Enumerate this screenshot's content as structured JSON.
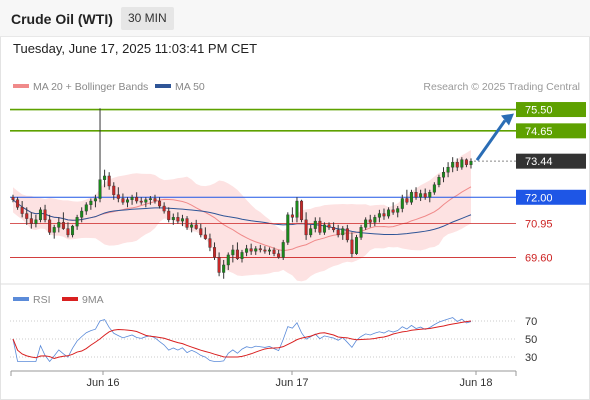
{
  "header": {
    "instrument": "Crude Oil (WTI)",
    "interval": "30 MIN",
    "datetime": "Tuesday, June 17, 2025 11:03:41 PM CET"
  },
  "legend": {
    "ma20": {
      "label": "MA 20 + Bollinger Bands",
      "color": "#f08a8a"
    },
    "ma50": {
      "label": "MA 50",
      "color": "#2f5597"
    }
  },
  "credit": "Research © 2025 Trading Central",
  "rsi_legend": {
    "rsi": {
      "label": "RSI",
      "color": "#5b8bd9"
    },
    "ma9": {
      "label": "9MA",
      "color": "#d92020"
    }
  },
  "colors": {
    "resistance": "#5ea100",
    "pivot": "#1e56e6",
    "support": "#cc2222",
    "last_price": "#333333",
    "bollinger_band": "#fde2e2",
    "candle_up": "#1a8a1a",
    "candle_down": "#c62828",
    "arrow": "#2a6db5"
  },
  "chart_data": {
    "type": "candlestick",
    "x_ticks": [
      "Jun 16",
      "Jun 17",
      "Jun 18"
    ],
    "y_range": [
      68.7,
      76.0
    ],
    "levels": [
      {
        "value": 75.5,
        "label": "75.50",
        "kind": "resistance"
      },
      {
        "value": 74.65,
        "label": "74.65",
        "kind": "resistance"
      },
      {
        "value": 73.44,
        "label": "73.44",
        "kind": "last"
      },
      {
        "value": 72.0,
        "label": "72.00",
        "kind": "pivot"
      },
      {
        "value": 70.95,
        "label": "70.95",
        "kind": "support"
      },
      {
        "value": 69.6,
        "label": "69.60",
        "kind": "support"
      }
    ],
    "candles": [
      [
        72.0,
        72.1,
        71.8,
        71.9
      ],
      [
        71.9,
        72.0,
        71.5,
        71.6
      ],
      [
        71.6,
        71.85,
        71.2,
        71.35
      ],
      [
        71.35,
        71.6,
        70.9,
        71.15
      ],
      [
        71.15,
        71.4,
        70.75,
        70.95
      ],
      [
        70.95,
        71.3,
        70.8,
        71.1
      ],
      [
        71.1,
        71.6,
        71.0,
        71.5
      ],
      [
        71.5,
        71.7,
        71.0,
        71.1
      ],
      [
        71.1,
        71.3,
        70.5,
        70.6
      ],
      [
        70.6,
        70.9,
        70.35,
        70.8
      ],
      [
        70.8,
        71.2,
        70.6,
        71.0
      ],
      [
        71.0,
        71.4,
        70.7,
        70.75
      ],
      [
        70.75,
        71.0,
        70.4,
        70.5
      ],
      [
        70.5,
        70.9,
        70.4,
        70.85
      ],
      [
        70.85,
        71.3,
        70.7,
        71.2
      ],
      [
        71.2,
        71.6,
        71.0,
        71.45
      ],
      [
        71.45,
        71.8,
        71.3,
        71.7
      ],
      [
        71.7,
        71.95,
        71.5,
        71.85
      ],
      [
        71.85,
        72.1,
        71.6,
        71.95
      ],
      [
        71.95,
        75.55,
        71.8,
        72.7
      ],
      [
        72.7,
        73.1,
        72.4,
        72.85
      ],
      [
        72.85,
        73.0,
        72.3,
        72.45
      ],
      [
        72.45,
        72.6,
        71.9,
        72.1
      ],
      [
        72.1,
        72.4,
        71.8,
        71.95
      ],
      [
        71.95,
        72.15,
        71.7,
        71.8
      ],
      [
        71.8,
        72.0,
        71.6,
        71.9
      ],
      [
        71.9,
        72.1,
        71.7,
        72.0
      ],
      [
        72.0,
        72.2,
        71.75,
        71.85
      ],
      [
        71.85,
        72.0,
        71.7,
        71.8
      ],
      [
        71.8,
        72.0,
        71.6,
        71.9
      ],
      [
        71.9,
        72.05,
        71.7,
        71.95
      ],
      [
        71.95,
        72.1,
        71.75,
        71.85
      ],
      [
        71.85,
        72.0,
        71.55,
        71.65
      ],
      [
        71.65,
        71.8,
        71.35,
        71.45
      ],
      [
        71.45,
        71.6,
        71.0,
        71.1
      ],
      [
        71.1,
        71.35,
        70.9,
        71.2
      ],
      [
        71.2,
        71.4,
        70.95,
        71.05
      ],
      [
        71.05,
        71.3,
        70.85,
        71.15
      ],
      [
        71.15,
        71.25,
        70.7,
        70.8
      ],
      [
        70.8,
        71.0,
        70.6,
        70.9
      ],
      [
        70.9,
        71.1,
        70.7,
        70.75
      ],
      [
        70.75,
        70.95,
        70.4,
        70.5
      ],
      [
        70.5,
        70.8,
        70.3,
        70.35
      ],
      [
        70.35,
        70.55,
        69.85,
        70.0
      ],
      [
        70.0,
        70.2,
        69.5,
        69.6
      ],
      [
        69.6,
        69.8,
        68.85,
        69.0
      ],
      [
        69.0,
        69.5,
        68.75,
        69.3
      ],
      [
        69.3,
        69.8,
        69.1,
        69.7
      ],
      [
        69.7,
        70.1,
        69.4,
        69.9
      ],
      [
        69.9,
        70.2,
        69.5,
        69.55
      ],
      [
        69.55,
        69.9,
        69.4,
        69.8
      ],
      [
        69.8,
        70.1,
        69.65,
        69.95
      ],
      [
        69.95,
        70.15,
        69.7,
        69.85
      ],
      [
        69.85,
        70.05,
        69.7,
        69.95
      ],
      [
        69.95,
        70.1,
        69.8,
        69.9
      ],
      [
        69.9,
        70.05,
        69.75,
        69.85
      ],
      [
        69.85,
        70.0,
        69.7,
        69.9
      ],
      [
        69.9,
        70.0,
        69.65,
        69.75
      ],
      [
        69.75,
        69.9,
        69.55,
        69.6
      ],
      [
        69.6,
        70.3,
        69.5,
        70.2
      ],
      [
        70.2,
        71.4,
        70.1,
        71.3
      ],
      [
        71.3,
        71.6,
        71.0,
        71.2
      ],
      [
        71.2,
        72.0,
        71.0,
        71.85
      ],
      [
        71.85,
        71.9,
        71.0,
        71.1
      ],
      [
        71.1,
        71.4,
        70.3,
        70.5
      ],
      [
        70.5,
        70.9,
        70.4,
        70.75
      ],
      [
        70.75,
        71.2,
        70.6,
        71.05
      ],
      [
        71.05,
        71.2,
        70.5,
        70.6
      ],
      [
        70.6,
        71.0,
        70.5,
        70.9
      ],
      [
        70.9,
        71.0,
        70.7,
        70.8
      ],
      [
        70.8,
        71.0,
        70.6,
        70.7
      ],
      [
        70.7,
        70.9,
        70.4,
        70.5
      ],
      [
        70.5,
        70.85,
        70.3,
        70.75
      ],
      [
        70.75,
        70.9,
        70.2,
        70.3
      ],
      [
        70.3,
        70.6,
        69.6,
        69.75
      ],
      [
        69.75,
        70.5,
        69.7,
        70.4
      ],
      [
        70.4,
        70.9,
        70.3,
        70.8
      ],
      [
        70.8,
        71.2,
        70.7,
        71.1
      ],
      [
        71.1,
        71.3,
        70.8,
        71.0
      ],
      [
        71.0,
        71.3,
        70.85,
        71.2
      ],
      [
        71.2,
        71.5,
        71.0,
        71.35
      ],
      [
        71.35,
        71.55,
        71.1,
        71.25
      ],
      [
        71.25,
        71.6,
        71.15,
        71.5
      ],
      [
        71.5,
        71.8,
        71.3,
        71.4
      ],
      [
        71.4,
        71.65,
        71.2,
        71.55
      ],
      [
        71.55,
        72.1,
        71.4,
        71.95
      ],
      [
        71.95,
        72.3,
        71.7,
        71.8
      ],
      [
        71.8,
        72.3,
        71.7,
        72.2
      ],
      [
        72.2,
        72.4,
        71.9,
        72.0
      ],
      [
        72.0,
        72.3,
        71.85,
        72.15
      ],
      [
        72.15,
        72.35,
        71.9,
        72.0
      ],
      [
        72.0,
        72.3,
        71.8,
        72.2
      ],
      [
        72.2,
        72.6,
        72.1,
        72.5
      ],
      [
        72.5,
        72.9,
        72.4,
        72.8
      ],
      [
        72.8,
        73.2,
        72.6,
        73.0
      ],
      [
        73.0,
        73.4,
        72.8,
        73.2
      ],
      [
        73.2,
        73.6,
        73.0,
        73.4
      ],
      [
        73.4,
        73.55,
        73.05,
        73.2
      ],
      [
        73.2,
        73.6,
        73.1,
        73.5
      ],
      [
        73.5,
        73.55,
        73.2,
        73.3
      ],
      [
        73.3,
        73.55,
        73.15,
        73.44
      ]
    ],
    "rsi": {
      "ticks": [
        30,
        50,
        70
      ],
      "range": [
        20,
        80
      ]
    }
  }
}
